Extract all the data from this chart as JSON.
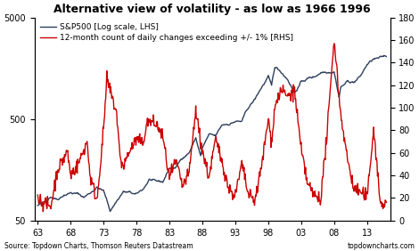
{
  "title": "Alternative view of volatility - as low as 1966 1996",
  "source": "Source: Topdown Charts, Thomson Reuters Datastream",
  "source_right": "topdowncharts.com",
  "legend_sp500": "S&P500 [Log scale, LHS]",
  "legend_vol": "12-month count of daily changes exceeding +/- 1% [RHS]",
  "sp500_color": "#2e3f5c",
  "vol_color": "#cc0000",
  "sp500_ylim": [
    50,
    5000
  ],
  "vol_ylim": [
    0,
    180
  ],
  "sp500_yticks": [
    50,
    500,
    5000
  ],
  "vol_yticks": [
    0,
    20,
    40,
    60,
    80,
    100,
    120,
    140,
    160,
    180
  ],
  "xtick_positions": [
    63,
    68,
    73,
    78,
    83,
    88,
    93,
    98,
    103,
    108,
    113
  ],
  "xlabels": [
    "63",
    "68",
    "73",
    "78",
    "83",
    "88",
    "93",
    "98",
    "03",
    "08",
    "13"
  ],
  "xlim": [
    62.5,
    116.5
  ],
  "sp500_linewidth": 1.0,
  "vol_linewidth": 1.0,
  "title_fontsize": 9,
  "tick_fontsize": 7,
  "legend_fontsize": 6.5,
  "source_fontsize": 5.5
}
